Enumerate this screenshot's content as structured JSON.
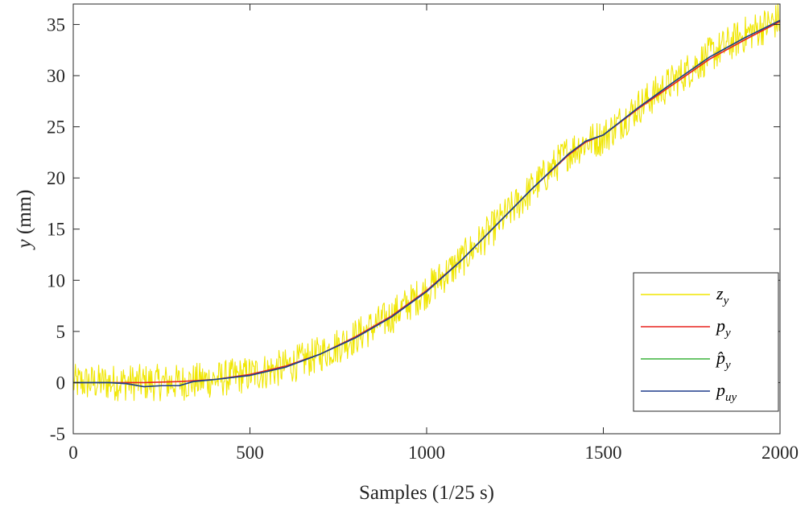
{
  "chart_data": {
    "type": "line",
    "title": "",
    "xlabel": "Samples (1/25 s)",
    "ylabel_var": "y",
    "ylabel_unit": "(mm)",
    "xlim": [
      0,
      2000
    ],
    "ylim": [
      -5,
      37
    ],
    "xticks": [
      0,
      500,
      1000,
      1500,
      2000
    ],
    "yticks": [
      -5,
      0,
      5,
      10,
      15,
      20,
      25,
      30,
      35
    ],
    "grid": false,
    "legend_position": "bottom-right",
    "colors": {
      "z_y": "#f0e600",
      "p_y": "#e8221e",
      "p_hat_y": "#3cb43c",
      "p_uy": "#1f3b8c"
    },
    "series": [
      {
        "name": "z_y",
        "legend_main": "z",
        "legend_sub": "y",
        "style": "noisy",
        "noise_amplitude": 1.8,
        "x": [
          0,
          100,
          200,
          300,
          400,
          500,
          600,
          700,
          800,
          900,
          1000,
          1100,
          1200,
          1300,
          1400,
          1450,
          1500,
          1600,
          1700,
          1800,
          1900,
          2000
        ],
        "y": [
          0,
          0,
          0,
          0,
          0.3,
          0.8,
          1.5,
          2.8,
          4.5,
          6.5,
          9,
          12,
          15.5,
          19,
          22.5,
          23.5,
          24,
          27,
          29.5,
          32,
          34,
          35.5
        ]
      },
      {
        "name": "p_y",
        "legend_main": "p",
        "legend_sub": "y",
        "x": [
          0,
          100,
          200,
          300,
          400,
          500,
          600,
          700,
          800,
          900,
          1000,
          1100,
          1200,
          1300,
          1400,
          1450,
          1500,
          1600,
          1700,
          1800,
          1900,
          2000
        ],
        "y": [
          0,
          0,
          0,
          0.1,
          0.3,
          0.8,
          1.6,
          2.8,
          4.5,
          6.5,
          9,
          12,
          15.5,
          19,
          22.2,
          23.5,
          24.2,
          26.8,
          29.2,
          31.6,
          33.5,
          35.3
        ]
      },
      {
        "name": "p_hat_y",
        "legend_main": "p̂",
        "legend_sub": "y",
        "x": [
          0,
          100,
          150,
          200,
          250,
          300,
          340,
          400,
          500,
          600,
          700,
          800,
          900,
          1000,
          1100,
          1200,
          1300,
          1400,
          1450,
          1500,
          1600,
          1700,
          1800,
          1900,
          2000
        ],
        "y": [
          0,
          0,
          -0.1,
          -0.4,
          -0.3,
          -0.3,
          0.1,
          0.3,
          0.7,
          1.5,
          2.8,
          4.4,
          6.4,
          8.9,
          12,
          15.5,
          19,
          22.3,
          23.6,
          24.2,
          26.9,
          29.4,
          31.8,
          33.7,
          35.4
        ]
      },
      {
        "name": "p_uy",
        "legend_main": "p",
        "legend_sub": "uy",
        "x": [
          0,
          100,
          150,
          200,
          250,
          300,
          340,
          400,
          500,
          600,
          700,
          800,
          900,
          1000,
          1100,
          1200,
          1300,
          1400,
          1450,
          1500,
          1600,
          1700,
          1800,
          1900,
          2000
        ],
        "y": [
          0,
          0,
          -0.1,
          -0.4,
          -0.3,
          -0.3,
          0.1,
          0.3,
          0.7,
          1.5,
          2.8,
          4.4,
          6.4,
          8.9,
          12,
          15.5,
          19,
          22.3,
          23.6,
          24.2,
          26.9,
          29.4,
          31.8,
          33.7,
          35.4
        ]
      }
    ]
  }
}
